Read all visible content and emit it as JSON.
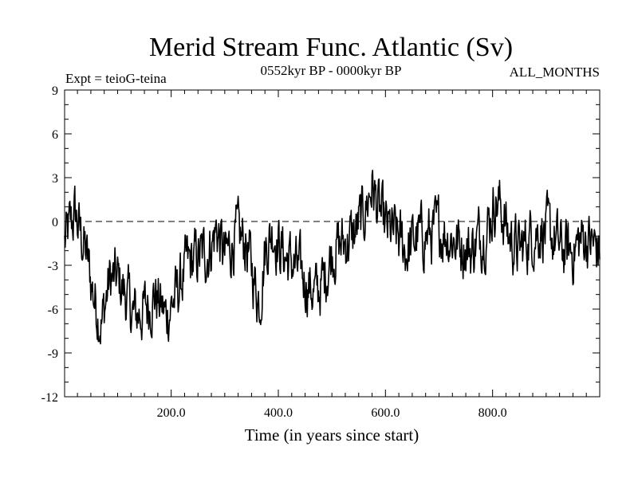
{
  "chart_data": {
    "type": "line",
    "title": "Merid Stream Func. Atlantic (Sv)",
    "subtitle_left": "Expt = teioG-teina",
    "subtitle_center": "0552kyr BP - 0000kyr BP",
    "subtitle_right": "ALL_MONTHS",
    "xlabel": "Time (in years since start)",
    "ylabel": "",
    "xlim": [
      1,
      1000
    ],
    "ylim": [
      -12,
      9
    ],
    "xticks": [
      200,
      400,
      600,
      800
    ],
    "xtick_labels": [
      "200.0",
      "400.0",
      "600.0",
      "800.0"
    ],
    "yticks": [
      -12,
      -9,
      -6,
      -3,
      0,
      3,
      6,
      9
    ],
    "ytick_labels": [
      "-12",
      "-9",
      "-6",
      "-3",
      "0",
      "3",
      "6",
      "9"
    ],
    "reference_line": {
      "y": 0,
      "style": "dashed"
    },
    "series": [
      {
        "name": "Merid Stream Func. Atlantic",
        "color": "#000000",
        "x": [
          1,
          20,
          40,
          55,
          70,
          85,
          100,
          115,
          130,
          150,
          170,
          190,
          210,
          230,
          250,
          270,
          285,
          300,
          320,
          340,
          355,
          365,
          375,
          390,
          400,
          415,
          430,
          450,
          470,
          485,
          500,
          520,
          540,
          560,
          575,
          585,
          600,
          620,
          640,
          660,
          680,
          700,
          720,
          740,
          760,
          775,
          790,
          805,
          815,
          830,
          850,
          870,
          890,
          910,
          930,
          950,
          970,
          985,
          1000
        ],
        "y": [
          -1.5,
          0.5,
          -2,
          -5,
          -7,
          -4,
          -4,
          -5,
          -6.5,
          -6,
          -5,
          -6.5,
          -5,
          -3,
          -2.5,
          -2,
          -0.5,
          -2.5,
          -1,
          -1.5,
          -4,
          -5.5,
          -2,
          -0.5,
          -1.5,
          -2.5,
          -3,
          -4,
          -5,
          -4,
          -2,
          -1.5,
          -1,
          0.5,
          2.5,
          1,
          -0.5,
          -1,
          -2,
          -1,
          -1,
          -0.5,
          -1,
          -1.5,
          -2,
          -1,
          -0.5,
          1.5,
          1,
          -1,
          -2,
          -1,
          -0.5,
          -1,
          -2,
          -2,
          -1,
          -1.5,
          -2
        ]
      }
    ]
  }
}
